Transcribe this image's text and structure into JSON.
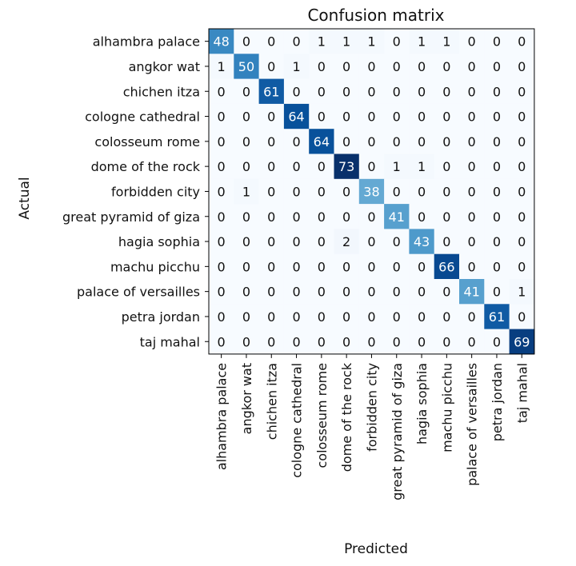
{
  "chart_data": {
    "type": "heatmap",
    "title": "Confusion matrix",
    "xlabel": "Predicted",
    "ylabel": "Actual",
    "classes": [
      "alhambra palace",
      "angkor wat",
      "chichen itza",
      "cologne cathedral",
      "colosseum rome",
      "dome of the rock",
      "forbidden city",
      "great pyramid of giza",
      "hagia sophia",
      "machu picchu",
      "palace of versailles",
      "petra jordan",
      "taj mahal"
    ],
    "matrix": [
      [
        48,
        0,
        0,
        0,
        1,
        1,
        1,
        0,
        1,
        1,
        0,
        0,
        0
      ],
      [
        1,
        50,
        0,
        1,
        0,
        0,
        0,
        0,
        0,
        0,
        0,
        0,
        0
      ],
      [
        0,
        0,
        61,
        0,
        0,
        0,
        0,
        0,
        0,
        0,
        0,
        0,
        0
      ],
      [
        0,
        0,
        0,
        64,
        0,
        0,
        0,
        0,
        0,
        0,
        0,
        0,
        0
      ],
      [
        0,
        0,
        0,
        0,
        64,
        0,
        0,
        0,
        0,
        0,
        0,
        0,
        0
      ],
      [
        0,
        0,
        0,
        0,
        0,
        73,
        0,
        1,
        1,
        0,
        0,
        0,
        0
      ],
      [
        0,
        1,
        0,
        0,
        0,
        0,
        38,
        0,
        0,
        0,
        0,
        0,
        0
      ],
      [
        0,
        0,
        0,
        0,
        0,
        0,
        0,
        41,
        0,
        0,
        0,
        0,
        0
      ],
      [
        0,
        0,
        0,
        0,
        0,
        2,
        0,
        0,
        43,
        0,
        0,
        0,
        0
      ],
      [
        0,
        0,
        0,
        0,
        0,
        0,
        0,
        0,
        0,
        66,
        0,
        0,
        0
      ],
      [
        0,
        0,
        0,
        0,
        0,
        0,
        0,
        0,
        0,
        0,
        41,
        0,
        1
      ],
      [
        0,
        0,
        0,
        0,
        0,
        0,
        0,
        0,
        0,
        0,
        0,
        61,
        0
      ],
      [
        0,
        0,
        0,
        0,
        0,
        0,
        0,
        0,
        0,
        0,
        0,
        0,
        69
      ]
    ],
    "colormap": "Blues",
    "color_low": "#f7fbff",
    "color_high": "#08306b",
    "grid": false,
    "legend": "none"
  }
}
